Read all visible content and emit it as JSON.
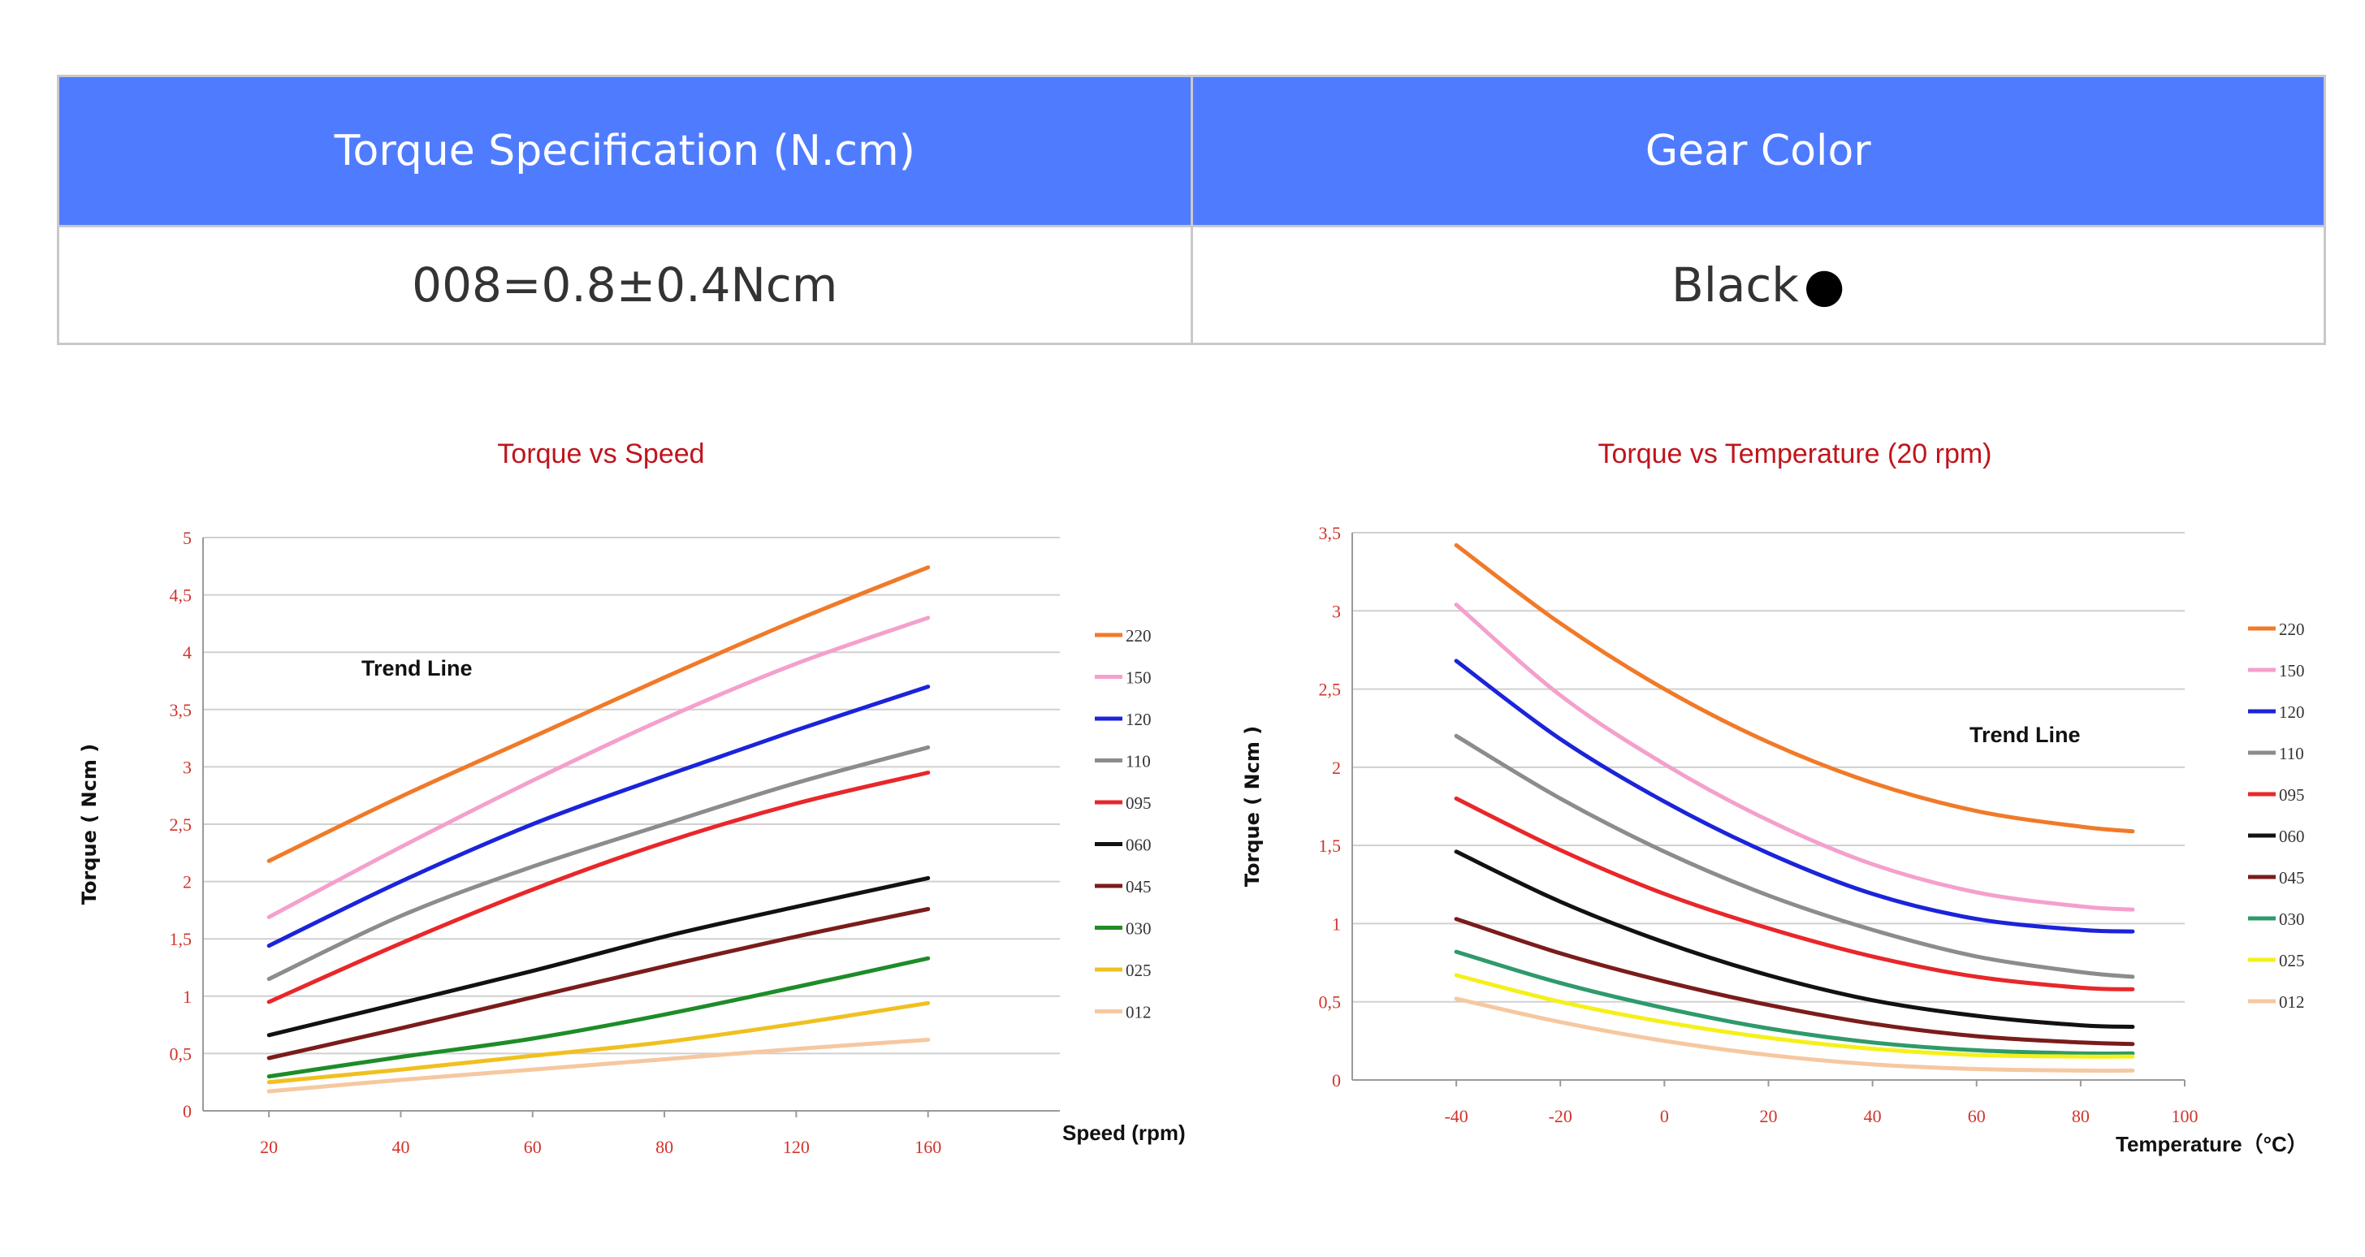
{
  "table": {
    "headers": [
      "Torque Specification (N.cm)",
      "Gear Color"
    ],
    "row": {
      "torque": "008=0.8±0.4Ncm",
      "color": "Black",
      "color_dot": "●"
    }
  },
  "chart_data": [
    {
      "type": "line",
      "title": "Torque vs Speed",
      "xlabel": "Speed (rpm)",
      "ylabel": "Torque ( Ncm )",
      "annotation": "Trend Line",
      "x_ticks": [
        "20",
        "40",
        "60",
        "80",
        "120",
        "160"
      ],
      "y_ticks": [
        "0",
        "0,5",
        "1",
        "1,5",
        "2",
        "2,5",
        "3",
        "3,5",
        "4",
        "4,5",
        "5"
      ],
      "ylim": [
        0,
        5
      ],
      "grid": true,
      "legend_position": "right",
      "series": [
        {
          "name": "220",
          "color": "#f07a28",
          "x": [
            "20",
            "40",
            "60",
            "80",
            "120",
            "160"
          ],
          "values": [
            2.18,
            2.74,
            3.26,
            3.78,
            4.28,
            4.74
          ]
        },
        {
          "name": "150",
          "color": "#f4a0cc",
          "x": [
            "20",
            "40",
            "60",
            "80",
            "120",
            "160"
          ],
          "values": [
            1.69,
            2.3,
            2.88,
            3.42,
            3.9,
            4.3
          ]
        },
        {
          "name": "120",
          "color": "#1b24d9",
          "x": [
            "20",
            "40",
            "60",
            "80",
            "120",
            "160"
          ],
          "values": [
            1.44,
            2.0,
            2.5,
            2.92,
            3.32,
            3.7
          ]
        },
        {
          "name": "110",
          "color": "#8c8c8c",
          "x": [
            "20",
            "40",
            "60",
            "80",
            "120",
            "160"
          ],
          "values": [
            1.15,
            1.7,
            2.13,
            2.5,
            2.86,
            3.17
          ]
        },
        {
          "name": "095",
          "color": "#e8272a",
          "x": [
            "20",
            "40",
            "60",
            "80",
            "120",
            "160"
          ],
          "values": [
            0.95,
            1.46,
            1.93,
            2.34,
            2.68,
            2.95
          ]
        },
        {
          "name": "060",
          "color": "#111111",
          "x": [
            "20",
            "40",
            "60",
            "80",
            "120",
            "160"
          ],
          "values": [
            0.66,
            0.94,
            1.22,
            1.52,
            1.78,
            2.03
          ]
        },
        {
          "name": "045",
          "color": "#7a1c1c",
          "x": [
            "20",
            "40",
            "60",
            "80",
            "120",
            "160"
          ],
          "values": [
            0.46,
            0.72,
            0.99,
            1.26,
            1.52,
            1.76
          ]
        },
        {
          "name": "030",
          "color": "#1e8c28",
          "x": [
            "20",
            "40",
            "60",
            "80",
            "120",
            "160"
          ],
          "values": [
            0.3,
            0.47,
            0.63,
            0.84,
            1.08,
            1.33
          ]
        },
        {
          "name": "025",
          "color": "#f0c020",
          "x": [
            "20",
            "40",
            "60",
            "80",
            "120",
            "160"
          ],
          "values": [
            0.25,
            0.36,
            0.48,
            0.6,
            0.76,
            0.94
          ]
        },
        {
          "name": "012",
          "color": "#f6c8a0",
          "x": [
            "20",
            "40",
            "60",
            "80",
            "120",
            "160"
          ],
          "values": [
            0.17,
            0.27,
            0.36,
            0.45,
            0.54,
            0.62
          ]
        }
      ]
    },
    {
      "type": "line",
      "title": "Torque vs Temperature (20 rpm)",
      "xlabel": "Temperature（°C）",
      "ylabel": "Torque ( Ncm )",
      "annotation": "Trend Line",
      "x_ticks": [
        "-40",
        "-20",
        "0",
        "20",
        "40",
        "60",
        "80",
        "100"
      ],
      "y_ticks": [
        "0",
        "0,5",
        "1",
        "1,5",
        "2",
        "2,5",
        "3",
        "3,5"
      ],
      "xlim": [
        -60,
        100
      ],
      "ylim": [
        0,
        3.5
      ],
      "grid": true,
      "legend_position": "right",
      "series": [
        {
          "name": "220",
          "color": "#f07a28",
          "x": [
            -40,
            -20,
            0,
            20,
            40,
            60,
            80,
            90
          ],
          "values": [
            3.42,
            2.92,
            2.5,
            2.16,
            1.9,
            1.72,
            1.62,
            1.59
          ]
        },
        {
          "name": "150",
          "color": "#f4a0cc",
          "x": [
            -40,
            -20,
            0,
            20,
            40,
            60,
            80,
            90
          ],
          "values": [
            3.04,
            2.46,
            2.02,
            1.66,
            1.38,
            1.2,
            1.11,
            1.09
          ]
        },
        {
          "name": "120",
          "color": "#1b24d9",
          "x": [
            -40,
            -20,
            0,
            20,
            40,
            60,
            80,
            90
          ],
          "values": [
            2.68,
            2.18,
            1.78,
            1.45,
            1.19,
            1.03,
            0.96,
            0.95
          ]
        },
        {
          "name": "110",
          "color": "#8c8c8c",
          "x": [
            -40,
            -20,
            0,
            20,
            40,
            60,
            80,
            90
          ],
          "values": [
            2.2,
            1.8,
            1.46,
            1.18,
            0.96,
            0.79,
            0.69,
            0.66
          ]
        },
        {
          "name": "095",
          "color": "#e8272a",
          "x": [
            -40,
            -20,
            0,
            20,
            40,
            60,
            80,
            90
          ],
          "values": [
            1.8,
            1.47,
            1.19,
            0.97,
            0.79,
            0.66,
            0.59,
            0.58
          ]
        },
        {
          "name": "060",
          "color": "#111111",
          "x": [
            -40,
            -20,
            0,
            20,
            40,
            60,
            80,
            90
          ],
          "values": [
            1.46,
            1.14,
            0.88,
            0.67,
            0.51,
            0.41,
            0.35,
            0.34
          ]
        },
        {
          "name": "045",
          "color": "#7a1c1c",
          "x": [
            -40,
            -20,
            0,
            20,
            40,
            60,
            80,
            90
          ],
          "values": [
            1.03,
            0.81,
            0.63,
            0.48,
            0.36,
            0.28,
            0.24,
            0.23
          ]
        },
        {
          "name": "030",
          "color": "#2e9a6a",
          "x": [
            -40,
            -20,
            0,
            20,
            40,
            60,
            80,
            90
          ],
          "values": [
            0.82,
            0.62,
            0.46,
            0.33,
            0.24,
            0.19,
            0.17,
            0.17
          ]
        },
        {
          "name": "025",
          "color": "#f5f01a",
          "x": [
            -40,
            -20,
            0,
            20,
            40,
            60,
            80,
            90
          ],
          "values": [
            0.67,
            0.5,
            0.37,
            0.27,
            0.2,
            0.16,
            0.15,
            0.15
          ]
        },
        {
          "name": "012",
          "color": "#f6c8a0",
          "x": [
            -40,
            -20,
            0,
            20,
            40,
            60,
            80,
            90
          ],
          "values": [
            0.52,
            0.37,
            0.25,
            0.16,
            0.1,
            0.07,
            0.06,
            0.06
          ]
        }
      ]
    }
  ]
}
